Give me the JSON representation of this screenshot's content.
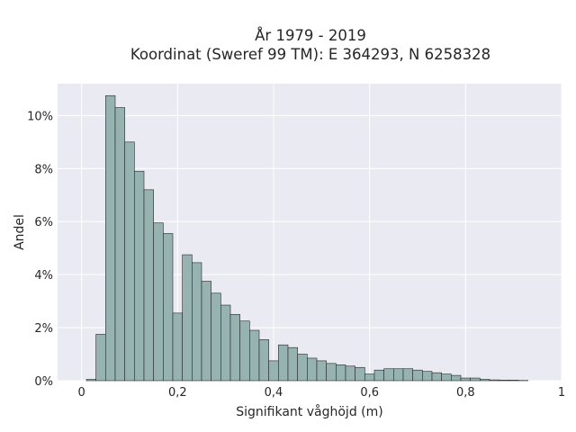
{
  "chart_data": {
    "type": "bar",
    "title_line1": "År 1979 - 2019",
    "title_line2": "Koordinat (Sweref 99 TM): E 364293, N 6258328",
    "xlabel": "Signifikant våghöjd (m)",
    "ylabel": "Andel",
    "xlim": [
      -0.05,
      1.0
    ],
    "ylim": [
      0,
      11.2
    ],
    "x_ticks": [
      {
        "value": 0,
        "label": "0"
      },
      {
        "value": 0.2,
        "label": "0,2"
      },
      {
        "value": 0.4,
        "label": "0,4"
      },
      {
        "value": 0.6,
        "label": "0,6"
      },
      {
        "value": 0.8,
        "label": "0,8"
      },
      {
        "value": 1.0,
        "label": "1"
      }
    ],
    "y_ticks": [
      {
        "value": 0,
        "label": "0%"
      },
      {
        "value": 2,
        "label": "2%"
      },
      {
        "value": 4,
        "label": "4%"
      },
      {
        "value": 6,
        "label": "6%"
      },
      {
        "value": 8,
        "label": "8%"
      },
      {
        "value": 10,
        "label": "10%"
      }
    ],
    "grid": true,
    "bin_width": 0.02,
    "bin_start": 0.01,
    "values": [
      0.05,
      1.75,
      10.75,
      10.3,
      9.0,
      7.9,
      7.2,
      5.95,
      5.55,
      2.55,
      4.75,
      4.45,
      3.75,
      3.3,
      2.85,
      2.5,
      2.25,
      1.9,
      1.55,
      0.75,
      1.35,
      1.25,
      1.0,
      0.85,
      0.75,
      0.65,
      0.6,
      0.55,
      0.5,
      0.25,
      0.4,
      0.45,
      0.45,
      0.45,
      0.4,
      0.35,
      0.3,
      0.25,
      0.2,
      0.1,
      0.1,
      0.05,
      0.03,
      0.02,
      0.02,
      0.01
    ]
  },
  "colors": {
    "plot_background": "#eaeaf2",
    "bar_fill": "#97b3b1",
    "bar_edge": "#262626",
    "grid": "#ffffff"
  }
}
